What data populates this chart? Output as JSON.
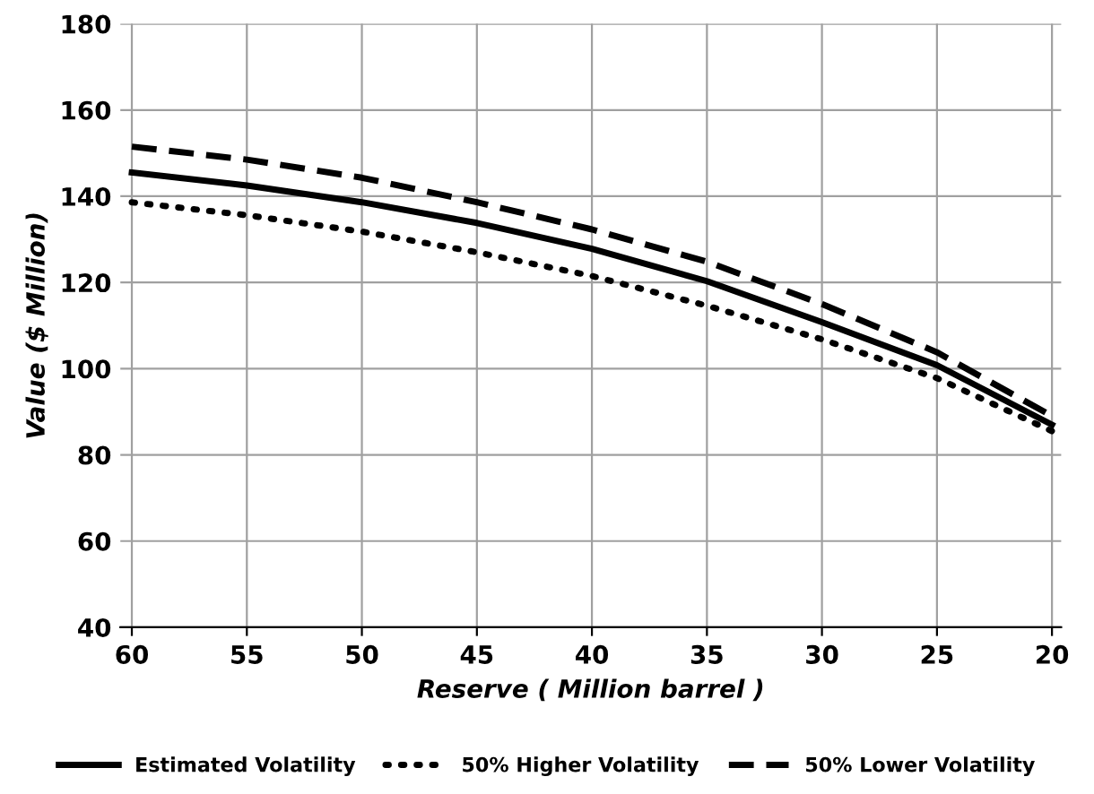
{
  "chart_data": {
    "type": "line",
    "xlabel": "Reserve ( Million barrel )",
    "ylabel": "Value ($ Million)",
    "x": [
      60,
      55,
      50,
      45,
      40,
      35,
      30,
      25,
      20
    ],
    "series": [
      {
        "name": "Estimated Volatility",
        "color": "#000000",
        "line_style": "solid",
        "values": [
          145.5,
          142.5,
          138.6,
          133.8,
          127.8,
          120.3,
          110.8,
          100.8,
          87
        ]
      },
      {
        "name": "50% Higher Volatility",
        "color": "#000000",
        "line_style": "dotted",
        "values": [
          138.6,
          135.6,
          131.8,
          127,
          121.5,
          114.6,
          106.8,
          97.8,
          85.5
        ]
      },
      {
        "name": "50% Lower Volatility",
        "color": "#000000",
        "line_style": "dashed",
        "values": [
          151.5,
          148.5,
          144.3,
          138.6,
          132.3,
          124.8,
          115,
          103.8,
          89
        ]
      }
    ],
    "xlim": [
      60.5,
      19.6
    ],
    "xticks": [
      60,
      55,
      50,
      45,
      40,
      35,
      30,
      25,
      20
    ],
    "ylim": [
      40,
      180
    ],
    "yticks": [
      40,
      60,
      80,
      100,
      120,
      140,
      160,
      180
    ],
    "grid": true,
    "legend": "bottom",
    "marker": "none"
  }
}
